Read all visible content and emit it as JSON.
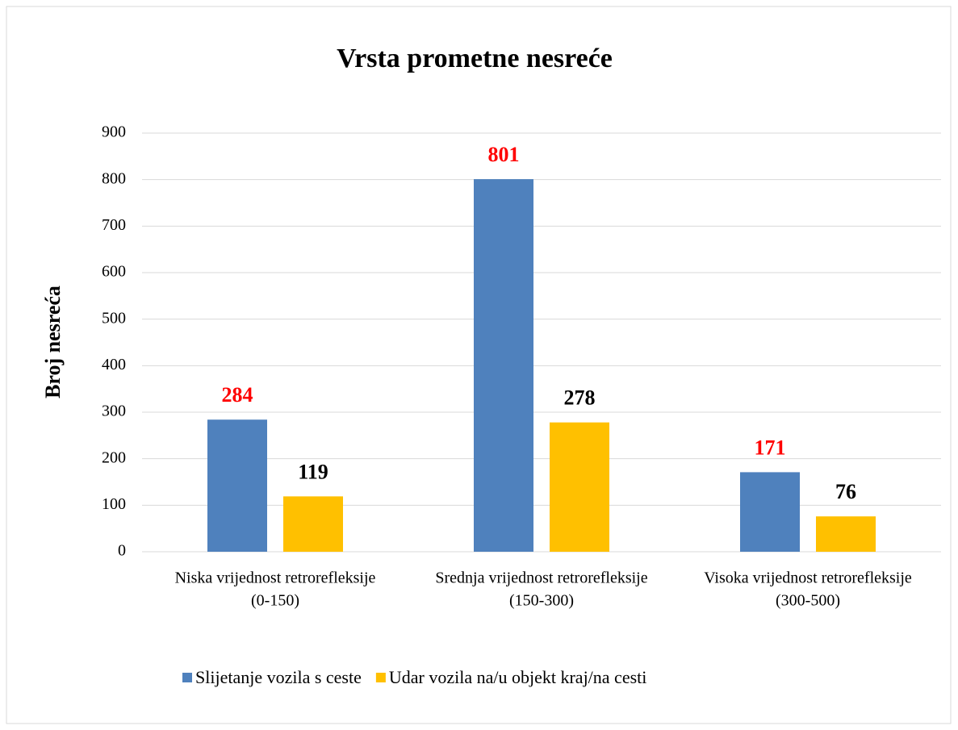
{
  "chart_data": {
    "type": "bar",
    "title": "Vrsta prometne nesreće",
    "y_label": "Broj nesreća",
    "categories": [
      [
        "Niska vrijednost retrorefleksije",
        "(0-150)"
      ],
      [
        "Srednja vrijednost retrorefleksije",
        "(150-300)"
      ],
      [
        "Visoka vrijednost retrorefleksije",
        "(300-500)"
      ]
    ],
    "series": [
      {
        "name": "Slijetanje vozila s ceste",
        "color": "#4f81bd",
        "label_color": "#ff0000",
        "values": [
          284,
          801,
          171
        ]
      },
      {
        "name": "Udar vozila na/u objekt kraj/na cesti",
        "color": "#ffc000",
        "label_color": "#000000",
        "values": [
          119,
          278,
          76
        ]
      }
    ],
    "ylim": [
      0,
      900
    ],
    "yticks": [
      0,
      100,
      200,
      300,
      400,
      500,
      600,
      700,
      800,
      900
    ],
    "grid": true,
    "legend": "bottom"
  }
}
